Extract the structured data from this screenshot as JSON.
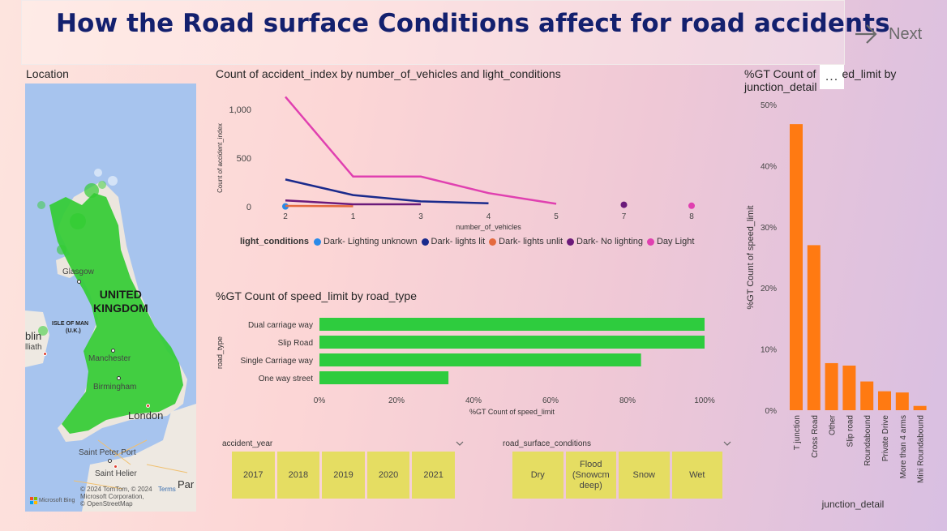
{
  "title": "How the Road surface Conditions affect for road accidents",
  "nav": {
    "next_label": "Next",
    "more_label": "..."
  },
  "map": {
    "section_label": "Location",
    "places": {
      "glasgow": "Glasgow",
      "uk1": "UNITED",
      "uk2": "KINGDOM",
      "iom1": "ISLE OF MAN",
      "iom2": "(U.K.)",
      "dublin": "blin",
      "lliath": "lliath",
      "manchester": "Manchester",
      "birmingham": "Birmingham",
      "london": "London",
      "saint_peter_port": "Saint Peter Port",
      "saint_helier": "Saint Helier",
      "paris": "Par"
    },
    "copyright1": "© 2024 TomTom, © 2024",
    "copyright2": "Microsoft Corporation,",
    "copyright3": "© OpenStreetMap",
    "terms": "Terms",
    "bing": "Microsoft Bing"
  },
  "chart_data": [
    {
      "type": "line",
      "title": "Count of accident_index by number_of_vehicles and light_conditions",
      "xlabel": "number_of_vehicles",
      "ylabel": "Count of accident_index",
      "categories": [
        "2",
        "1",
        "3",
        "4",
        "5",
        "7",
        "8"
      ],
      "ylim": [
        0,
        1150
      ],
      "yticks": [
        0,
        500,
        1000
      ],
      "ytick_labels": [
        "0",
        "500",
        "1,000"
      ],
      "legend_title": "light_conditions",
      "series": [
        {
          "name": "Dark- Lighting unknown",
          "color": "#2a8ae8",
          "values": [
            3,
            null,
            null,
            null,
            null,
            null,
            null
          ]
        },
        {
          "name": "Dark- lights lit",
          "color": "#1a2a8c",
          "values": [
            280,
            120,
            55,
            35,
            null,
            null,
            null
          ]
        },
        {
          "name": "Dark- lights unlit",
          "color": "#e46a3e",
          "values": [
            8,
            5,
            null,
            null,
            null,
            null,
            null
          ]
        },
        {
          "name": "Dark- No lighting",
          "color": "#6b1a7a",
          "values": [
            65,
            25,
            25,
            null,
            null,
            20,
            null
          ]
        },
        {
          "name": "Day Light",
          "color": "#e040b0",
          "values": [
            1130,
            310,
            310,
            140,
            30,
            null,
            10
          ]
        }
      ]
    },
    {
      "type": "bar",
      "orientation": "horizontal",
      "title": "%GT Count of speed_limit by road_type",
      "xlabel": "%GT Count of speed_limit",
      "ylabel": "road_type",
      "categories": [
        "Dual carriage way",
        "Slip Road",
        "Single Carriage way",
        "One way street"
      ],
      "values": [
        100,
        100,
        83.5,
        33.5
      ],
      "xlim": [
        0,
        100
      ],
      "xtick_labels": [
        "0%",
        "20%",
        "40%",
        "60%",
        "80%",
        "100%"
      ],
      "color": "#2ecc3e"
    },
    {
      "type": "bar",
      "title": "%GT Count of speed_limit by junction_detail",
      "title_line1": "%GT Count of",
      "title_line1_tail": "ed_limit by",
      "title_line2": "junction_detail",
      "xlabel": "junction_detail",
      "ylabel": "%GT Count of speed_limit",
      "categories": [
        "T junction",
        "Cross Road",
        "Other",
        "Slip road",
        "Roundabound",
        "Private Drive",
        "More than 4 arms",
        "Mini Roundabound"
      ],
      "values": [
        46.8,
        27,
        7.7,
        7.3,
        4.7,
        3.1,
        2.9,
        0.7
      ],
      "ylim": [
        0,
        50
      ],
      "ytick_labels": [
        "0%",
        "10%",
        "20%",
        "30%",
        "40%",
        "50%"
      ],
      "color": "#ff7a12"
    }
  ],
  "slicers": {
    "year": {
      "label": "accident_year",
      "options": [
        "2017",
        "2018",
        "2019",
        "2020",
        "2021"
      ]
    },
    "surface": {
      "label": "road_surface_conditions",
      "options": [
        "Dry",
        "Flood (Snowcm deep)",
        "Snow",
        "Wet"
      ]
    }
  }
}
